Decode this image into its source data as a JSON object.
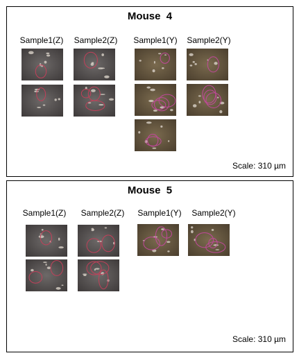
{
  "panels": [
    {
      "title": "Mouse  4",
      "columns": [
        "Sample1(Z)",
        "Sample2(Z)",
        "Sample1(Y)",
        "Sample2(Y)"
      ],
      "scale": "Scale: 310 µm"
    },
    {
      "title": "Mouse  5",
      "columns": [
        "Sample1(Z)",
        "Sample2(Z)",
        "Sample1(Y)",
        "Sample2(Y)"
      ],
      "scale": "Scale: 310 µm"
    }
  ]
}
